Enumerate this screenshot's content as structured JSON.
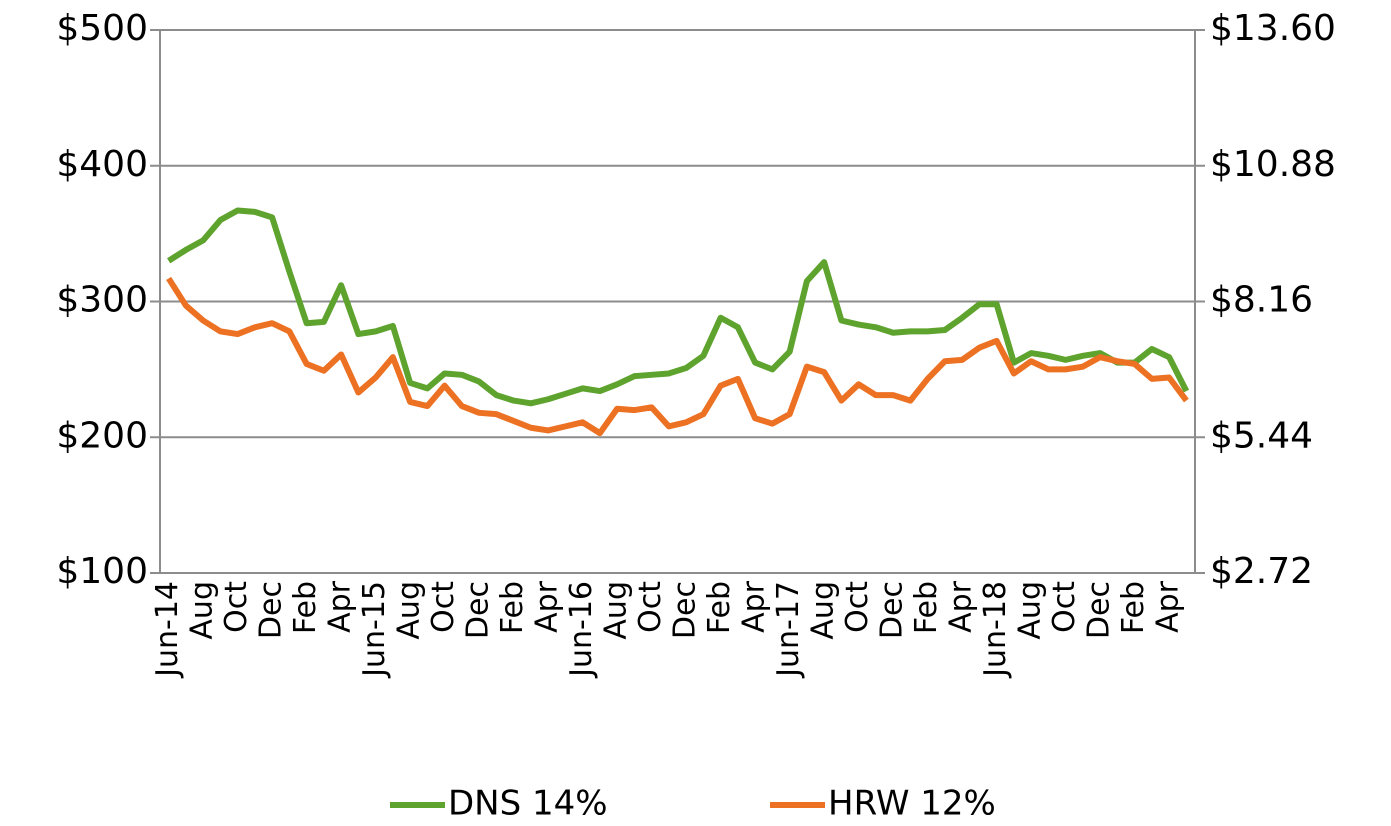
{
  "chart_data": {
    "type": "line",
    "categories": [
      "Jun-14",
      null,
      "Aug",
      null,
      "Oct",
      null,
      "Dec",
      null,
      "Feb",
      null,
      "Apr",
      null,
      "Jun-15",
      null,
      "Aug",
      null,
      "Oct",
      null,
      "Dec",
      null,
      "Feb",
      null,
      "Apr",
      null,
      "Jun-16",
      null,
      "Aug",
      null,
      "Oct",
      null,
      "Dec",
      null,
      "Feb",
      null,
      "Apr",
      null,
      "Jun-17",
      null,
      "Aug",
      null,
      "Oct",
      null,
      "Dec",
      null,
      "Feb",
      null,
      "Apr",
      null,
      "Jun-18",
      null,
      "Aug",
      null,
      "Oct",
      null,
      "Dec",
      null,
      "Feb",
      null,
      "Apr",
      null
    ],
    "series": [
      {
        "name": "DNS 14%",
        "color": "#5ea32e",
        "values": [
          330,
          338,
          345,
          360,
          367,
          366,
          362,
          322,
          284,
          285,
          312,
          276,
          278,
          282,
          240,
          236,
          247,
          246,
          241,
          231,
          227,
          225,
          228,
          232,
          236,
          234,
          239,
          245,
          246,
          247,
          251,
          260,
          288,
          281,
          255,
          250,
          263,
          315,
          329,
          286,
          283,
          281,
          277,
          278,
          278,
          279,
          288,
          298,
          298,
          255,
          262,
          260,
          257,
          260,
          262,
          255,
          255,
          265,
          259,
          234
        ]
      },
      {
        "name": "HRW 12%",
        "color": "#ec7123",
        "values": [
          317,
          297,
          286,
          278,
          276,
          281,
          284,
          278,
          254,
          249,
          261,
          233,
          244,
          259,
          226,
          223,
          238,
          223,
          218,
          217,
          212,
          207,
          205,
          208,
          211,
          203,
          221,
          220,
          222,
          208,
          211,
          217,
          238,
          243,
          214,
          210,
          217,
          252,
          248,
          227,
          239,
          231,
          231,
          227,
          243,
          256,
          257,
          266,
          271,
          247,
          256,
          250,
          250,
          252,
          259,
          256,
          254,
          243,
          244,
          227
        ]
      }
    ],
    "ylim": [
      100,
      500
    ],
    "yticks": [
      {
        "value": 100,
        "label": "$100"
      },
      {
        "value": 200,
        "label": "$200"
      },
      {
        "value": 300,
        "label": "$300"
      },
      {
        "value": 400,
        "label": "$400"
      },
      {
        "value": 500,
        "label": "$500"
      }
    ],
    "y2lim": [
      2.72,
      13.6
    ],
    "y2ticks": [
      {
        "value": 2.72,
        "label": "$2.72"
      },
      {
        "value": 5.44,
        "label": "$5.44"
      },
      {
        "value": 8.16,
        "label": "$8.16"
      },
      {
        "value": 10.88,
        "label": "$10.88"
      },
      {
        "value": 13.6,
        "label": "$13.60"
      }
    ],
    "grid": true,
    "legend": "bottom"
  }
}
